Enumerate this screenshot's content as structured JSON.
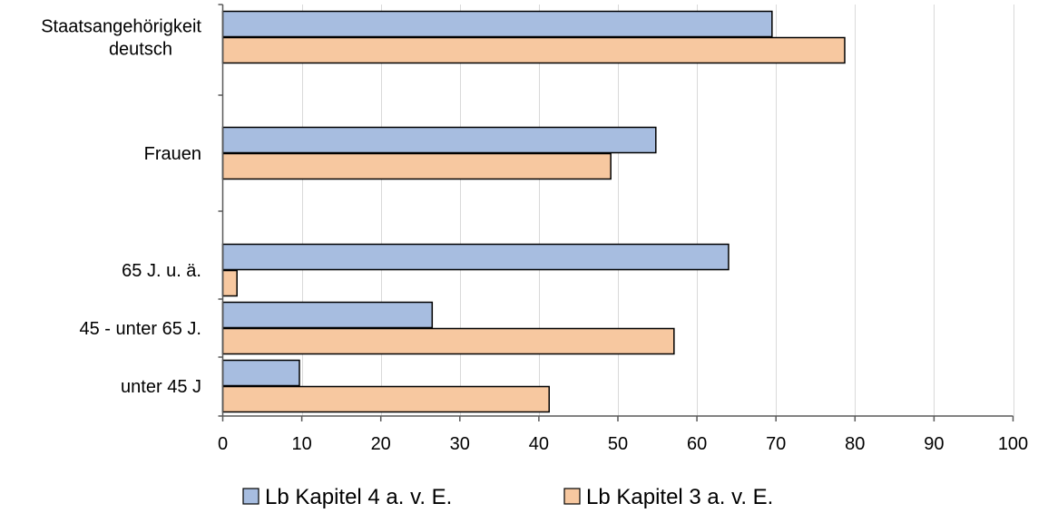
{
  "chart_data": {
    "type": "bar",
    "orientation": "horizontal",
    "title": "",
    "xlabel": "",
    "ylabel": "",
    "xlim": [
      0,
      100
    ],
    "x_ticks": [
      0,
      10,
      20,
      30,
      40,
      50,
      60,
      70,
      80,
      90,
      100
    ],
    "grid": "vertical",
    "legend_position": "bottom",
    "categories": [
      [
        "Staatsangehörigkeit",
        "deutsch"
      ],
      [
        "Frauen"
      ],
      [
        "65 J. u. ä."
      ],
      [
        "45 - unter 65 J."
      ],
      [
        "unter 45 J"
      ]
    ],
    "series": [
      {
        "name": "Lb Kapitel 4 a. v. E.",
        "color": "#a7bde0",
        "values": [
          69.5,
          54.8,
          64.0,
          26.5,
          9.7
        ]
      },
      {
        "name": "Lb Kapitel 3 a. v. E.",
        "color": "#f7c8a0",
        "values": [
          78.7,
          49.1,
          1.8,
          57.1,
          41.3
        ]
      }
    ],
    "colors": {
      "grid": "#d9d9d9",
      "axis": "#595959",
      "bar_stroke": "#000000"
    }
  }
}
